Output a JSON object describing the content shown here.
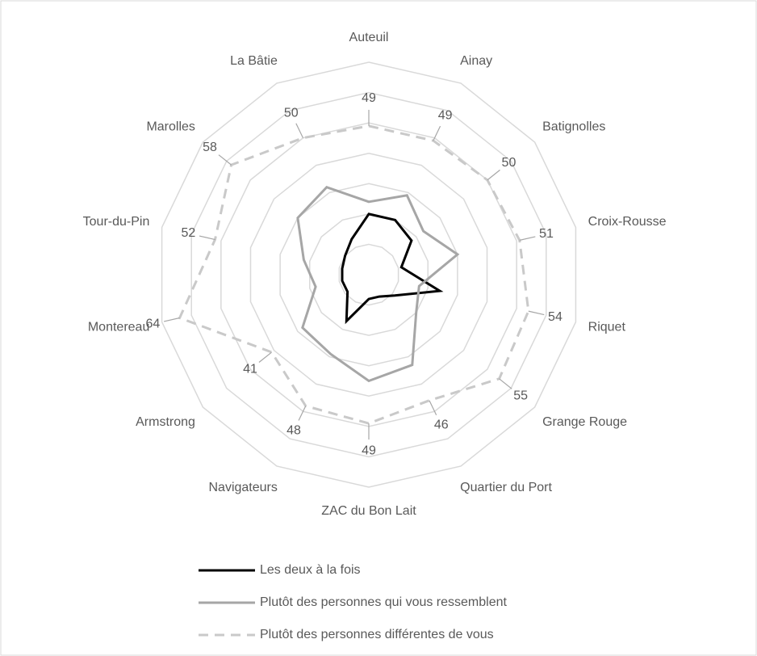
{
  "chart_data": {
    "type": "radar",
    "categories": [
      "Auteuil",
      "Ainay",
      "Batignolles",
      "Croix-Rousse",
      "Riquet",
      "Grange Rouge",
      "Quartier du Port",
      "ZAC du Bon Lait",
      "Navigateurs",
      "Armstrong",
      "Montereau",
      "Tour-du-Pin",
      "Marolles",
      "La Bâtie"
    ],
    "series": [
      {
        "name": "Les deux à la fois",
        "color": "#000000",
        "dash": false,
        "values": [
          20,
          20,
          18,
          11,
          24,
          11,
          8,
          8,
          17,
          9,
          9,
          9,
          10,
          13
        ]
      },
      {
        "name": "Plutôt des personnes qui vous ressemblent",
        "color": "#a6a6a6",
        "dash": false,
        "values": [
          24,
          29,
          23,
          30,
          17,
          20,
          33,
          35,
          29,
          28,
          18,
          22,
          30,
          32
        ]
      },
      {
        "name": "Plutôt des personnes différentes de vous",
        "color": "#c9c9c9",
        "dash": true,
        "values": [
          49,
          49,
          50,
          51,
          54,
          55,
          46,
          49,
          48,
          41,
          64,
          52,
          58,
          50
        ],
        "data_labels": true
      }
    ],
    "ylim": [
      0,
      70
    ],
    "yticks": [
      0,
      10,
      20,
      30,
      40,
      50,
      60,
      70
    ],
    "grid": true,
    "legend": "bottom"
  }
}
